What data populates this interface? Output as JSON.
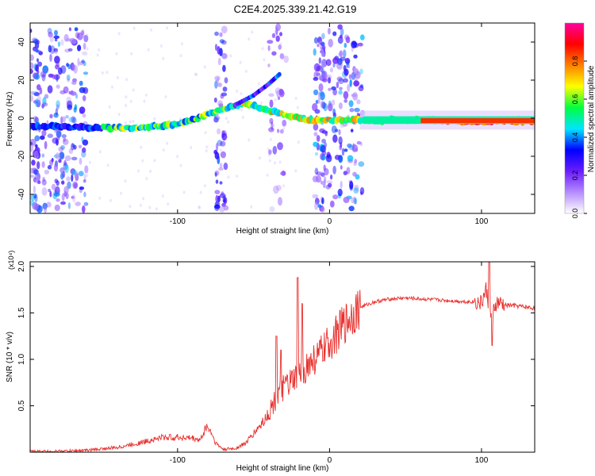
{
  "title": "C2E4.2025.339.21.42.G19",
  "chart_data": [
    {
      "type": "heatmap",
      "title": "C2E4.2025.339.21.42.G19",
      "xlabel": "Height of straight line (km)",
      "ylabel": "Frequency (Hz)",
      "xlim": [
        -197,
        135
      ],
      "ylim": [
        -50,
        50
      ],
      "xticks": [
        -100,
        0,
        100
      ],
      "yticks": [
        -40,
        -20,
        0,
        20,
        40
      ],
      "grid": false,
      "colorbar": {
        "label": "Normalized spectral amplitude",
        "range": [
          0,
          1
        ],
        "ticks": [
          0.0,
          0.2,
          0.4,
          0.6,
          0.8
        ],
        "tick_labels": [
          "0.0",
          "0.2",
          "0.4",
          "0.6",
          "0.8"
        ],
        "colors": [
          "#ffffff",
          "#b58cff",
          "#6a1cff",
          "#0000ff",
          "#00e5ff",
          "#00ff40",
          "#ffff00",
          "#ff8000",
          "#ff0000",
          "#ff00a0"
        ]
      },
      "ridge": [
        {
          "x": -197,
          "y": -4
        },
        {
          "x": -150,
          "y": -5
        },
        {
          "x": -120,
          "y": -5
        },
        {
          "x": -100,
          "y": -3
        },
        {
          "x": -80,
          "y": 2
        },
        {
          "x": -70,
          "y": 5
        },
        {
          "x": -55,
          "y": 8
        },
        {
          "x": -45,
          "y": 5
        },
        {
          "x": -30,
          "y": 2
        },
        {
          "x": -20,
          "y": 0
        },
        {
          "x": -10,
          "y": -1
        },
        {
          "x": 0,
          "y": -1
        },
        {
          "x": 20,
          "y": -1
        },
        {
          "x": 50,
          "y": -1
        },
        {
          "x": 100,
          "y": -1.5
        },
        {
          "x": 135,
          "y": -1.5
        }
      ],
      "branch": [
        {
          "x": -62,
          "y": 7
        },
        {
          "x": -50,
          "y": 12
        },
        {
          "x": -40,
          "y": 18
        },
        {
          "x": -33,
          "y": 23
        }
      ],
      "annotations": []
    },
    {
      "type": "line",
      "xlabel": "Height of straight line (km)",
      "ylabel": "SNR (10 * v/v)",
      "scale_label": "(x10⁴)",
      "xlim": [
        -197,
        135
      ],
      "ylim": [
        0,
        2.05
      ],
      "xticks": [
        -100,
        0,
        100
      ],
      "yticks": [
        0.5,
        1.0,
        1.5,
        2.0
      ],
      "ytick_labels": [
        "0.5",
        "1.0",
        "1.5",
        "2.0"
      ],
      "grid": false,
      "series": [
        {
          "name": "SNR",
          "color": "#e8312e",
          "x": [
            -197,
            -180,
            -160,
            -140,
            -125,
            -110,
            -100,
            -90,
            -85,
            -81,
            -78,
            -75,
            -70,
            -62,
            -55,
            -50,
            -45,
            -40,
            -35,
            -30,
            -25,
            -20,
            -15,
            -10,
            -5,
            0,
            5,
            10,
            15,
            20,
            30,
            40,
            50,
            60,
            70,
            80,
            90,
            95,
            100,
            103,
            106,
            110,
            115,
            120,
            125,
            130,
            135
          ],
          "y": [
            0.01,
            0.01,
            0.02,
            0.05,
            0.1,
            0.16,
            0.16,
            0.15,
            0.13,
            0.28,
            0.22,
            0.1,
            0.03,
            0.04,
            0.1,
            0.2,
            0.3,
            0.42,
            0.58,
            0.7,
            0.75,
            0.82,
            0.92,
            1.0,
            1.08,
            1.18,
            1.28,
            1.38,
            1.48,
            1.56,
            1.62,
            1.65,
            1.66,
            1.65,
            1.64,
            1.63,
            1.62,
            1.62,
            1.6,
            1.75,
            1.45,
            1.6,
            1.58,
            1.58,
            1.57,
            1.56,
            1.55
          ]
        }
      ],
      "spikes": [
        {
          "x": -35,
          "y": 1.25
        },
        {
          "x": -32,
          "y": 1.1
        },
        {
          "x": -21,
          "y": 1.88
        },
        {
          "x": -18,
          "y": 1.6
        },
        {
          "x": 105,
          "y": 2.05
        },
        {
          "x": 107,
          "y": 1.15
        }
      ]
    }
  ]
}
